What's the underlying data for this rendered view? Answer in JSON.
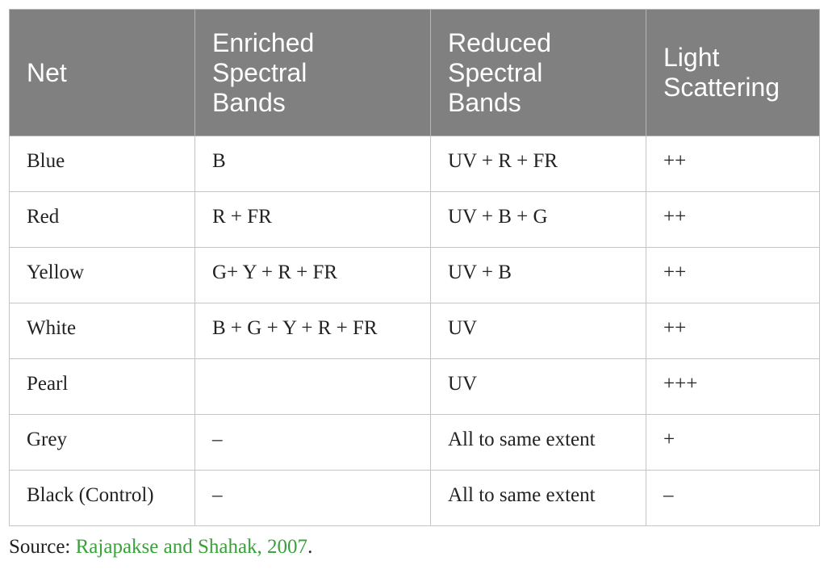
{
  "table": {
    "headers": [
      "Net",
      "Enriched Spectral Bands",
      "Reduced Spectral Bands",
      "Light Scattering"
    ],
    "rows": [
      [
        "Blue",
        "B",
        "UV + R + FR",
        "++"
      ],
      [
        "Red",
        "R + FR",
        "UV + B + G",
        "++"
      ],
      [
        "Yellow",
        "G+ Y + R + FR",
        "UV + B",
        "++"
      ],
      [
        "White",
        "B + G + Y + R + FR",
        "UV",
        "++"
      ],
      [
        "Pearl",
        null,
        "UV",
        "+++"
      ],
      [
        "Grey",
        "–",
        "All to same extent",
        "+"
      ],
      [
        "Black (Control)",
        "–",
        "All to same extent",
        "–"
      ]
    ]
  },
  "source": {
    "label": "Source:",
    "link": "Rajapakse and Shahak, 2007",
    "end": "."
  }
}
